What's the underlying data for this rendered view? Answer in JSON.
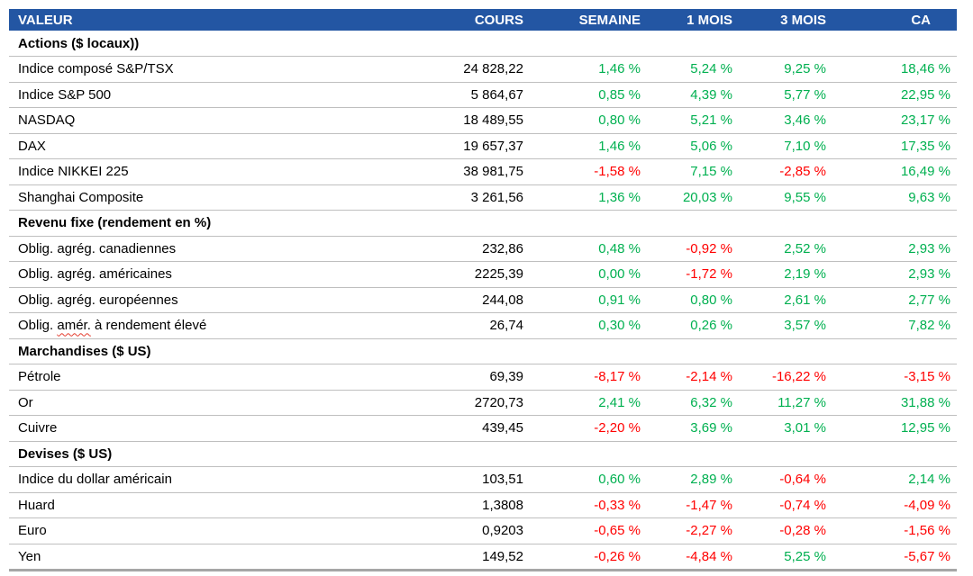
{
  "table": {
    "columns": [
      {
        "label": "VALEUR"
      },
      {
        "label": "COURS"
      },
      {
        "label": "SEMAINE"
      },
      {
        "label": "1 MOIS"
      },
      {
        "label": "3 MOIS"
      },
      {
        "label": "CA"
      }
    ],
    "colors": {
      "header_background": "#2356A3",
      "header_text": "#FFFFFF",
      "positive": "#00B050",
      "negative": "#FF0000",
      "row_border": "#BFBFBF",
      "bottom_bar": "#A6A6A6",
      "spellcheck_underline": "#E53E30"
    },
    "sections": [
      {
        "title": "Actions ($ locaux))",
        "rows": [
          {
            "label": "Indice composé S&P/TSX",
            "cours": "24 828,22",
            "changes": [
              "1,46 %",
              "5,24 %",
              "9,25 %",
              "18,46 %"
            ]
          },
          {
            "label": "Indice S&P 500",
            "cours": "5 864,67",
            "changes": [
              "0,85 %",
              "4,39 %",
              "5,77 %",
              "22,95 %"
            ]
          },
          {
            "label": "NASDAQ",
            "cours": "18 489,55",
            "changes": [
              "0,80 %",
              "5,21 %",
              "3,46 %",
              "23,17 %"
            ]
          },
          {
            "label": "DAX",
            "cours": "19 657,37",
            "changes": [
              "1,46 %",
              "5,06 %",
              "7,10 %",
              "17,35 %"
            ]
          },
          {
            "label": "Indice NIKKEI 225",
            "cours": "38 981,75",
            "changes": [
              "-1,58 %",
              "7,15 %",
              "-2,85 %",
              "16,49 %"
            ]
          },
          {
            "label": "Shanghai Composite",
            "cours": "3 261,56",
            "changes": [
              "1,36 %",
              "20,03 %",
              "9,55 %",
              "9,63 %"
            ]
          }
        ]
      },
      {
        "title": "Revenu fixe (rendement en %)",
        "rows": [
          {
            "label": "Oblig. agrég. canadiennes",
            "cours": "232,86",
            "changes": [
              "0,48 %",
              "-0,92 %",
              "2,52 %",
              "2,93 %"
            ]
          },
          {
            "label": "Oblig. agrég. américaines",
            "cours": "2225,39",
            "changes": [
              "0,00 %",
              "-1,72 %",
              "2,19 %",
              "2,93 %"
            ]
          },
          {
            "label": "Oblig. agrég. européennes",
            "cours": "244,08",
            "changes": [
              "0,91 %",
              "0,80 %",
              "2,61 %",
              "2,77 %"
            ]
          },
          {
            "label": "Oblig. amér. à rendement élevé",
            "cours": "26,74",
            "changes": [
              "0,30 %",
              "0,26 %",
              "3,57 %",
              "7,82 %"
            ],
            "wavy": {
              "pre": "Oblig. ",
              "mark": "amér.",
              "post": " à rendement élevé"
            }
          }
        ]
      },
      {
        "title": "Marchandises ($ US)",
        "rows": [
          {
            "label": "Pétrole",
            "cours": "69,39",
            "changes": [
              "-8,17 %",
              "-2,14 %",
              "-16,22 %",
              "-3,15 %"
            ]
          },
          {
            "label": "Or",
            "cours": "2720,73",
            "changes": [
              "2,41 %",
              "6,32 %",
              "11,27 %",
              "31,88 %"
            ]
          },
          {
            "label": "Cuivre",
            "cours": "439,45",
            "changes": [
              "-2,20 %",
              "3,69 %",
              "3,01 %",
              "12,95 %"
            ]
          }
        ]
      },
      {
        "title": "Devises ($ US)",
        "rows": [
          {
            "label": "Indice du dollar américain",
            "cours": "103,51",
            "changes": [
              "0,60 %",
              "2,89 %",
              "-0,64 %",
              "2,14 %"
            ]
          },
          {
            "label": "Huard",
            "cours": "1,3808",
            "changes": [
              "-0,33 %",
              "-1,47 %",
              "-0,74 %",
              "-4,09 %"
            ]
          },
          {
            "label": "Euro",
            "cours": "0,9203",
            "changes": [
              "-0,65 %",
              "-2,27 %",
              "-0,28 %",
              "-1,56 %"
            ]
          },
          {
            "label": "Yen",
            "cours": "149,52",
            "changes": [
              "-0,26 %",
              "-4,84 %",
              "5,25 %",
              "-5,67 %"
            ]
          }
        ]
      }
    ]
  }
}
